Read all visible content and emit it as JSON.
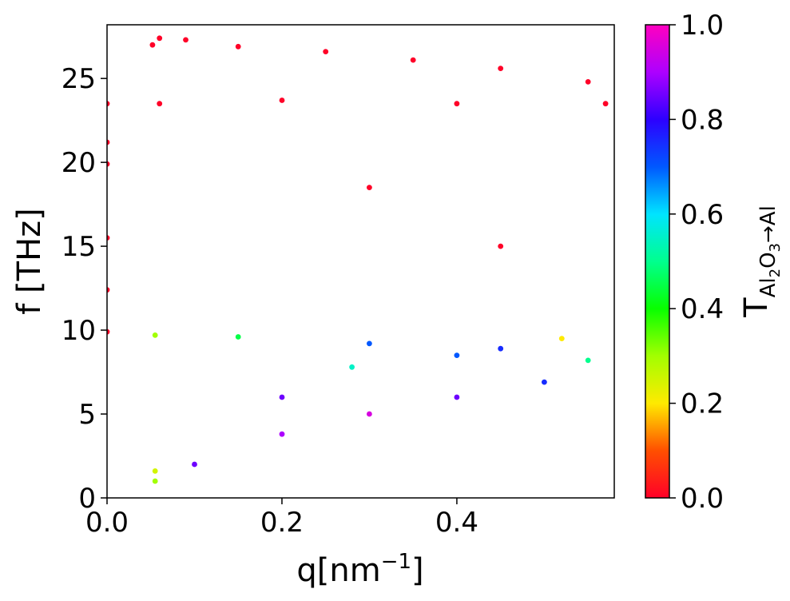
{
  "chart_data": {
    "type": "scatter",
    "title": "",
    "xlabel_base": "q[nm",
    "xlabel_sup": "−1",
    "xlabel_tail": "]",
    "ylabel": "f [THz]",
    "xlim": [
      0.0,
      0.58
    ],
    "ylim": [
      0,
      28.2
    ],
    "xticks": [
      {
        "value": 0.0,
        "label": "0.0"
      },
      {
        "value": 0.2,
        "label": "0.2"
      },
      {
        "value": 0.4,
        "label": "0.4"
      }
    ],
    "yticks": [
      {
        "value": 0,
        "label": "0"
      },
      {
        "value": 5,
        "label": "5"
      },
      {
        "value": 10,
        "label": "10"
      },
      {
        "value": 15,
        "label": "15"
      },
      {
        "value": 20,
        "label": "20"
      },
      {
        "value": 25,
        "label": "25"
      }
    ],
    "grid": false,
    "colorbar": {
      "label_main": "T",
      "label_sub_1": "Al",
      "label_sub_2": "2",
      "label_sub_3": "O",
      "label_sub_4": "3",
      "label_arrow": "→Al",
      "range": [
        0.0,
        1.0
      ],
      "colormap": "gist_rainbow",
      "ticks": [
        {
          "value": 0.0,
          "label": "0.0"
        },
        {
          "value": 0.2,
          "label": "0.2"
        },
        {
          "value": 0.4,
          "label": "0.4"
        },
        {
          "value": 0.6,
          "label": "0.6"
        },
        {
          "value": 0.8,
          "label": "0.8"
        },
        {
          "value": 1.0,
          "label": "1.0"
        }
      ]
    },
    "series": [
      {
        "values": [
          {
            "q": 0.0,
            "f": 23.5,
            "t": 0.0
          },
          {
            "q": 0.0,
            "f": 21.2,
            "t": 0.0
          },
          {
            "q": 0.0,
            "f": 19.9,
            "t": 0.0
          },
          {
            "q": 0.0,
            "f": 15.5,
            "t": 0.0
          },
          {
            "q": 0.0,
            "f": 12.4,
            "t": 0.0
          },
          {
            "q": 0.0,
            "f": 9.9,
            "t": 0.0
          },
          {
            "q": 0.052,
            "f": 27.0,
            "t": 0.0
          },
          {
            "q": 0.06,
            "f": 27.4,
            "t": 0.0
          },
          {
            "q": 0.09,
            "f": 27.3,
            "t": 0.0
          },
          {
            "q": 0.15,
            "f": 26.9,
            "t": 0.0
          },
          {
            "q": 0.25,
            "f": 26.6,
            "t": 0.0
          },
          {
            "q": 0.35,
            "f": 26.1,
            "t": 0.0
          },
          {
            "q": 0.45,
            "f": 25.6,
            "t": 0.0
          },
          {
            "q": 0.55,
            "f": 24.8,
            "t": 0.0
          },
          {
            "q": 0.06,
            "f": 23.5,
            "t": 0.0
          },
          {
            "q": 0.2,
            "f": 23.7,
            "t": 0.0
          },
          {
            "q": 0.4,
            "f": 23.5,
            "t": 0.0
          },
          {
            "q": 0.57,
            "f": 23.5,
            "t": 0.0
          },
          {
            "q": 0.3,
            "f": 18.5,
            "t": 0.0
          },
          {
            "q": 0.45,
            "f": 15.0,
            "t": 0.0
          },
          {
            "q": 0.055,
            "f": 9.7,
            "t": 0.3
          },
          {
            "q": 0.15,
            "f": 9.6,
            "t": 0.45
          },
          {
            "q": 0.3,
            "f": 9.2,
            "t": 0.7
          },
          {
            "q": 0.45,
            "f": 8.9,
            "t": 0.75
          },
          {
            "q": 0.55,
            "f": 8.2,
            "t": 0.5
          },
          {
            "q": 0.055,
            "f": 1.6,
            "t": 0.25
          },
          {
            "q": 0.055,
            "f": 1.0,
            "t": 0.3
          },
          {
            "q": 0.1,
            "f": 2.0,
            "t": 0.85
          },
          {
            "q": 0.2,
            "f": 3.8,
            "t": 0.9
          },
          {
            "q": 0.3,
            "f": 5.0,
            "t": 0.95
          },
          {
            "q": 0.4,
            "f": 6.0,
            "t": 0.85
          },
          {
            "q": 0.5,
            "f": 6.9,
            "t": 0.75
          },
          {
            "q": 0.2,
            "f": 6.0,
            "t": 0.85
          },
          {
            "q": 0.28,
            "f": 7.8,
            "t": 0.55
          },
          {
            "q": 0.4,
            "f": 8.5,
            "t": 0.7
          },
          {
            "q": 0.52,
            "f": 9.5,
            "t": 0.2
          }
        ]
      }
    ]
  }
}
